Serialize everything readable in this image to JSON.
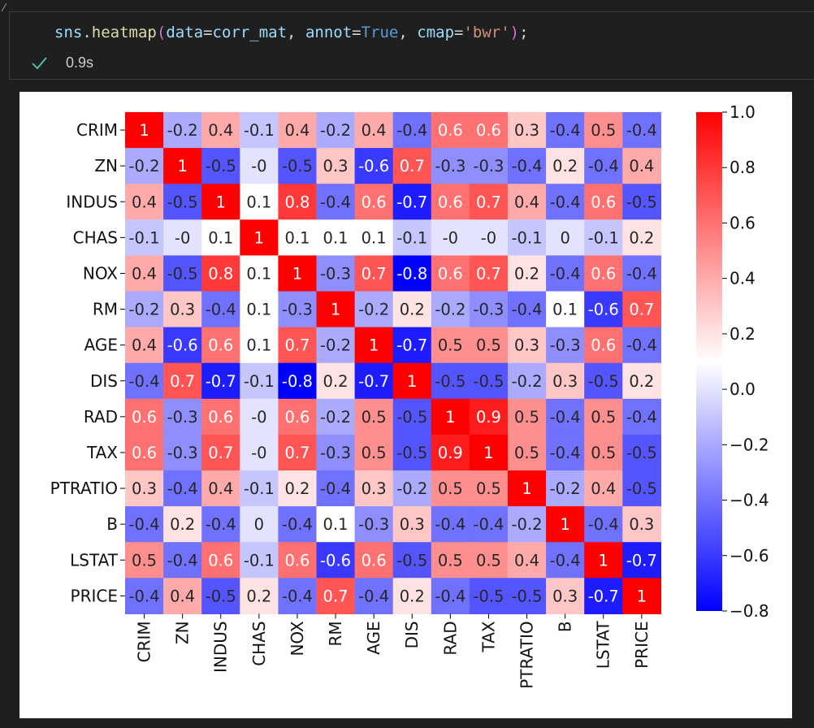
{
  "cell": {
    "code_tokens": [
      {
        "cls": "tok-name",
        "text": "sns"
      },
      {
        "cls": "tok-op",
        "text": "."
      },
      {
        "cls": "tok-fn",
        "text": "heatmap"
      },
      {
        "cls": "tok-brk",
        "text": "("
      },
      {
        "cls": "tok-name",
        "text": "data"
      },
      {
        "cls": "tok-op",
        "text": "="
      },
      {
        "cls": "tok-name",
        "text": "corr_mat"
      },
      {
        "cls": "tok-op",
        "text": ", "
      },
      {
        "cls": "tok-name",
        "text": "annot"
      },
      {
        "cls": "tok-op",
        "text": "="
      },
      {
        "cls": "tok-kw",
        "text": "True"
      },
      {
        "cls": "tok-op",
        "text": ", "
      },
      {
        "cls": "tok-name",
        "text": "cmap"
      },
      {
        "cls": "tok-op",
        "text": "="
      },
      {
        "cls": "tok-str",
        "text": "'bwr'"
      },
      {
        "cls": "tok-brk",
        "text": ")"
      },
      {
        "cls": "tok-semi",
        "text": ";"
      }
    ],
    "status_icon": "check-icon",
    "status_time": "0.9s",
    "status_color": "#4ec9b0"
  },
  "chart_data": {
    "type": "heatmap",
    "labels": [
      "CRIM",
      "ZN",
      "INDUS",
      "CHAS",
      "NOX",
      "RM",
      "AGE",
      "DIS",
      "RAD",
      "TAX",
      "PTRATIO",
      "B",
      "LSTAT",
      "PRICE"
    ],
    "matrix": [
      [
        "1",
        "-0.2",
        "0.4",
        "-0.1",
        "0.4",
        "-0.2",
        "0.4",
        "-0.4",
        "0.6",
        "0.6",
        "0.3",
        "-0.4",
        "0.5",
        "-0.4"
      ],
      [
        "-0.2",
        "1",
        "-0.5",
        "-0",
        "-0.5",
        "0.3",
        "-0.6",
        "0.7",
        "-0.3",
        "-0.3",
        "-0.4",
        "0.2",
        "-0.4",
        "0.4"
      ],
      [
        "0.4",
        "-0.5",
        "1",
        "0.1",
        "0.8",
        "-0.4",
        "0.6",
        "-0.7",
        "0.6",
        "0.7",
        "0.4",
        "-0.4",
        "0.6",
        "-0.5"
      ],
      [
        "-0.1",
        "-0",
        "0.1",
        "1",
        "0.1",
        "0.1",
        "0.1",
        "-0.1",
        "-0",
        "-0",
        "-0.1",
        "0",
        "-0.1",
        "0.2"
      ],
      [
        "0.4",
        "-0.5",
        "0.8",
        "0.1",
        "1",
        "-0.3",
        "0.7",
        "-0.8",
        "0.6",
        "0.7",
        "0.2",
        "-0.4",
        "0.6",
        "-0.4"
      ],
      [
        "-0.2",
        "0.3",
        "-0.4",
        "0.1",
        "-0.3",
        "1",
        "-0.2",
        "0.2",
        "-0.2",
        "-0.3",
        "-0.4",
        "0.1",
        "-0.6",
        "0.7"
      ],
      [
        "0.4",
        "-0.6",
        "0.6",
        "0.1",
        "0.7",
        "-0.2",
        "1",
        "-0.7",
        "0.5",
        "0.5",
        "0.3",
        "-0.3",
        "0.6",
        "-0.4"
      ],
      [
        "-0.4",
        "0.7",
        "-0.7",
        "-0.1",
        "-0.8",
        "0.2",
        "-0.7",
        "1",
        "-0.5",
        "-0.5",
        "-0.2",
        "0.3",
        "-0.5",
        "0.2"
      ],
      [
        "0.6",
        "-0.3",
        "0.6",
        "-0",
        "0.6",
        "-0.2",
        "0.5",
        "-0.5",
        "1",
        "0.9",
        "0.5",
        "-0.4",
        "0.5",
        "-0.4"
      ],
      [
        "0.6",
        "-0.3",
        "0.7",
        "-0",
        "0.7",
        "-0.3",
        "0.5",
        "-0.5",
        "0.9",
        "1",
        "0.5",
        "-0.4",
        "0.5",
        "-0.5"
      ],
      [
        "0.3",
        "-0.4",
        "0.4",
        "-0.1",
        "0.2",
        "-0.4",
        "0.3",
        "-0.2",
        "0.5",
        "0.5",
        "1",
        "-0.2",
        "0.4",
        "-0.5"
      ],
      [
        "-0.4",
        "0.2",
        "-0.4",
        "0",
        "-0.4",
        "0.1",
        "-0.3",
        "0.3",
        "-0.4",
        "-0.4",
        "-0.2",
        "1",
        "-0.4",
        "0.3"
      ],
      [
        "0.5",
        "-0.4",
        "0.6",
        "-0.1",
        "0.6",
        "-0.6",
        "0.6",
        "-0.5",
        "0.5",
        "0.5",
        "0.4",
        "-0.4",
        "1",
        "-0.7"
      ],
      [
        "-0.4",
        "0.4",
        "-0.5",
        "0.2",
        "-0.4",
        "0.7",
        "-0.4",
        "0.2",
        "-0.4",
        "-0.5",
        "-0.5",
        "0.3",
        "-0.7",
        "1"
      ]
    ],
    "cmap": "bwr",
    "vmin": -0.8,
    "vmax": 1.0,
    "colorbar_ticks": [
      "1.0",
      "0.8",
      "0.6",
      "0.4",
      "0.2",
      "0.0",
      "−0.2",
      "−0.4",
      "−0.6",
      "−0.8"
    ],
    "colorbar_tick_values": [
      1.0,
      0.8,
      0.6,
      0.4,
      0.2,
      0.0,
      -0.2,
      -0.4,
      -0.6,
      -0.8
    ],
    "annot": true,
    "title": "",
    "xlabel": "",
    "ylabel": ""
  }
}
